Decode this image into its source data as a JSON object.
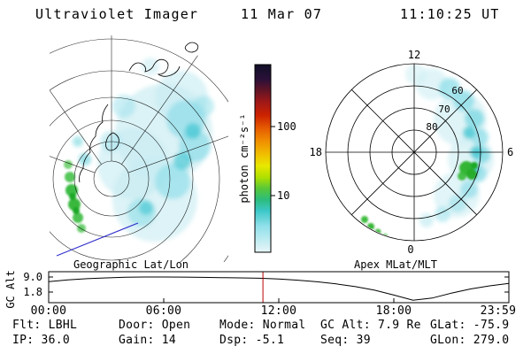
{
  "header": {
    "title": "Ultraviolet Imager",
    "date": "11 Mar 07",
    "time": "11:10:25 UT"
  },
  "colorbar": {
    "label": "photon cm⁻²s⁻¹",
    "tick_100": "100",
    "tick_10": "10"
  },
  "geo_panel": {
    "caption": "Geographic Lat/Lon"
  },
  "polar_panel": {
    "caption": "Apex MLat/MLT",
    "mlt_top": "12",
    "mlt_left": "18",
    "mlt_right": "6",
    "mlt_bottom": "0",
    "mlat_60": "60",
    "mlat_70": "70",
    "mlat_80": "80"
  },
  "strip_plot": {
    "ylabel": "GC Alt",
    "ytick_top": "9.0",
    "ytick_bottom": "1.8",
    "xticks": [
      "00:00",
      "06:00",
      "12:00",
      "18:00",
      "23:59"
    ]
  },
  "status": {
    "flt": "Flt: LBHL",
    "door": "Door: Open",
    "mode": "Mode: Normal",
    "gc_alt": "GC Alt: 7.9 Re",
    "glat": "GLat: -75.9",
    "ip": "IP: 36.0",
    "gain": "Gain: 14",
    "dsp": "Dsp: -5.1",
    "seq": "Seq: 39",
    "glon": "GLon: 279.0"
  },
  "chart_data": [
    {
      "type": "heatmap",
      "panel": "geographic",
      "title": "Geographic Lat/Lon",
      "description": "UVI auroral image projected in geographic latitude/longitude (southern view). Diffuse emission ~1-20 photon cm-2 s-1 (pale cyan) over most of the disk, stronger cyan band near center, bright auroral arc segment (green, ~20-60 photon cm-2 s-1) along the left limb.",
      "colorbar": {
        "label": "photon cm⁻²s⁻¹",
        "scale": "log",
        "ticks": [
          100,
          10
        ]
      }
    },
    {
      "type": "heatmap",
      "panel": "polar",
      "title": "Apex MLat/MLT",
      "mlat_rings": [
        80,
        70,
        60,
        50
      ],
      "mlt_spokes": [
        0,
        3,
        6,
        9,
        12,
        15,
        18,
        21
      ],
      "description": "Auroral oval in apex magnetic latitude / magnetic local time. Arc extends from ~13 MLT clockwise through 6 MLT to ~0 MLT near 55-70 MLat; brightest green emission near 4-5 MLT; detached green patches near 21-22 MLT."
    },
    {
      "type": "line",
      "panel": "gc-alt",
      "title": "GC Alt",
      "ylabel": "GC Alt",
      "yscale": "log",
      "yticks": [
        9.0,
        1.8
      ],
      "hours": [
        0,
        1,
        2,
        3,
        4,
        5,
        6,
        7,
        8,
        9,
        10,
        11,
        12,
        13,
        14,
        15,
        16,
        17,
        18,
        19,
        20,
        21,
        22,
        23,
        24
      ],
      "values": [
        5.5,
        6.6,
        7.5,
        8.2,
        8.8,
        9.0,
        9.0,
        8.9,
        8.7,
        8.4,
        8.2,
        7.9,
        7.3,
        6.4,
        5.4,
        4.3,
        3.2,
        2.2,
        1.3,
        0.75,
        0.95,
        1.6,
        2.5,
        3.5,
        4.5
      ],
      "xticks": [
        "00:00",
        "06:00",
        "12:00",
        "18:00",
        "23:59"
      ],
      "marker_hour": 11.174,
      "marker_color": "#bb0000"
    }
  ]
}
